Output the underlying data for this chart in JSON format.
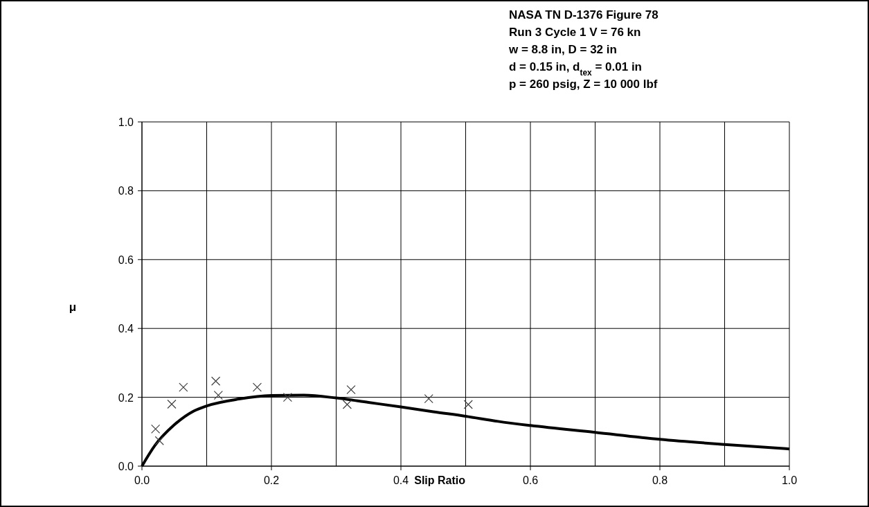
{
  "chart_data": {
    "type": "scatter",
    "title": "NASA TN D-1376 Figure 78",
    "annotations": [
      "Run 3 Cycle 1 V = 76 kn",
      "w = 8.8 in, D = 32 in",
      "d = 0.15 in, d$_{tex}$ = 0.01 in",
      "p = 260 psig, Z = 10 000 lbf"
    ],
    "xlabel": "Slip Ratio",
    "ylabel": "μ",
    "xlim": [
      0,
      1
    ],
    "ylim": [
      0,
      1
    ],
    "xticks": [
      {
        "value": 0,
        "label": "0.0"
      },
      0.2,
      0.4,
      0.6,
      0.8,
      {
        "value": 1,
        "label": "1.0"
      }
    ],
    "yticks": [
      {
        "value": 0,
        "label": "0.0"
      },
      0.2,
      0.4,
      0.6,
      0.8,
      {
        "value": 1,
        "label": "1.0"
      }
    ],
    "grid": true,
    "series": [
      {
        "marker": "cross",
        "color": "#404040",
        "x": [
          0.021,
          0.027,
          0.046,
          0.064,
          0.114,
          0.118,
          0.178,
          0.225,
          0.317,
          0.323,
          0.443,
          0.504
        ],
        "values": [
          0.108,
          0.074,
          0.18,
          0.229,
          0.247,
          0.206,
          0.229,
          0.2,
          0.179,
          0.222,
          0.196,
          0.179
        ]
      },
      {
        "type": "line",
        "marker": "none",
        "color": "#000000",
        "x": [
          0,
          0.02,
          0.05,
          0.08,
          0.1,
          0.15,
          0.2,
          0.25,
          0.3,
          0.35,
          0.4,
          0.45,
          0.5,
          0.55,
          0.6,
          0.7,
          0.8,
          0.9,
          1.0
        ],
        "values": [
          0,
          0.06,
          0.12,
          0.16,
          0.175,
          0.195,
          0.205,
          0.206,
          0.198,
          0.185,
          0.172,
          0.158,
          0.145,
          0.13,
          0.118,
          0.098,
          0.078,
          0.063,
          0.05
        ]
      }
    ]
  }
}
